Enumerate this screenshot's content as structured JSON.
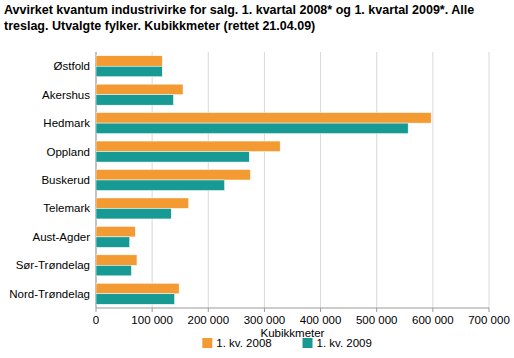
{
  "chart_data": {
    "type": "bar",
    "orientation": "horizontal",
    "title": "Avvirket kvantum industrivirke for salg. 1. kvartal 2008* og 1. kvartal 2009*. Alle treslag. Utvalgte fylker. Kubikkmeter (rettet 21.04.09)",
    "xlabel": "Kubikkmeter",
    "categories": [
      "Østfold",
      "Akershus",
      "Hedmark",
      "Oppland",
      "Buskerud",
      "Telemark",
      "Aust-Agder",
      "Sør-Trøndelag",
      "Nord-Trøndelag"
    ],
    "series": [
      {
        "name": "1. kv. 2008",
        "color": "#f39a32",
        "values": [
          118000,
          155000,
          597000,
          328000,
          275000,
          165000,
          70000,
          73000,
          148000
        ]
      },
      {
        "name": "1. kv. 2009",
        "color": "#179a94",
        "values": [
          118000,
          138000,
          556000,
          273000,
          229000,
          134000,
          60000,
          63000,
          140000
        ]
      }
    ],
    "xlim": [
      0,
      700000
    ],
    "xticks": [
      0,
      {
        "value": 100000,
        "label": "100 000"
      },
      {
        "value": 200000,
        "label": "200 000"
      },
      {
        "value": 300000,
        "label": "300 000"
      },
      {
        "value": 400000,
        "label": "400 000"
      },
      {
        "value": 500000,
        "label": "500 000"
      },
      {
        "value": 600000,
        "label": "600 000"
      },
      {
        "value": 700000,
        "label": "700 000"
      }
    ],
    "grid": true,
    "legend": "bottom"
  }
}
